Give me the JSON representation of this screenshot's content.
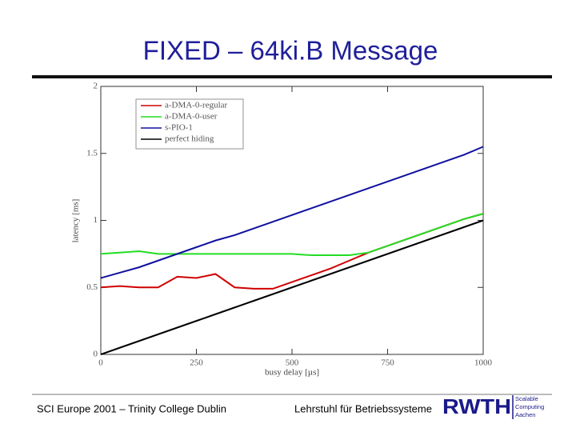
{
  "chart_data": {
    "type": "line",
    "title": "FIXED – 64ki.B Message",
    "x_label": "busy delay [µs]",
    "y_label": "latency [ms]",
    "x": [
      0,
      50,
      100,
      150,
      200,
      250,
      300,
      350,
      400,
      450,
      500,
      550,
      600,
      650,
      700,
      750,
      800,
      850,
      900,
      950,
      1000
    ],
    "series": [
      {
        "name": "a-DMA-0-regular",
        "color": "#d00000",
        "values": [
          0.5,
          0.51,
          0.5,
          0.5,
          0.58,
          0.57,
          0.6,
          0.5,
          0.49,
          0.49,
          0.54,
          0.59,
          0.64,
          0.7,
          0.76,
          0.81,
          0.86,
          0.91,
          0.96,
          1.01,
          1.05
        ]
      },
      {
        "name": "a-DMA-0-user",
        "color": "#22dd22",
        "values": [
          0.75,
          0.76,
          0.77,
          0.75,
          0.75,
          0.75,
          0.75,
          0.75,
          0.75,
          0.75,
          0.75,
          0.74,
          0.74,
          0.74,
          0.76,
          0.81,
          0.86,
          0.91,
          0.96,
          1.01,
          1.05
        ]
      },
      {
        "name": "s-PIO-1",
        "color": "#1010a0",
        "values": [
          0.57,
          0.61,
          0.65,
          0.7,
          0.75,
          0.8,
          0.85,
          0.89,
          0.94,
          0.99,
          1.04,
          1.09,
          1.14,
          1.19,
          1.24,
          1.29,
          1.34,
          1.39,
          1.44,
          1.49,
          1.55
        ]
      },
      {
        "name": "perfect hiding",
        "color": "#000000",
        "values": [
          0,
          0.05,
          0.1,
          0.15,
          0.2,
          0.25,
          0.3,
          0.35,
          0.4,
          0.45,
          0.5,
          0.55,
          0.6,
          0.65,
          0.7,
          0.75,
          0.8,
          0.85,
          0.9,
          0.95,
          1.0
        ]
      }
    ],
    "xlim": [
      0,
      1000
    ],
    "xticks": [
      0,
      250,
      500,
      750,
      1000
    ],
    "ylim": [
      0,
      2
    ],
    "yticks": [
      0,
      0.5,
      1,
      1.5,
      2
    ],
    "grid": false,
    "legend": "upper left"
  },
  "footer": {
    "left": "SCI Europe 2001 – Trinity College Dublin",
    "center": "Lehrstuhl für Betriebssysteme",
    "logo": "RWTH",
    "logo_sub": [
      "Scalable",
      "Computing",
      "Aachen"
    ]
  }
}
